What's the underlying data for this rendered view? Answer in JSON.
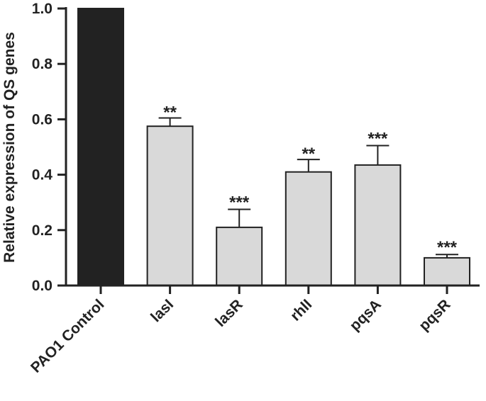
{
  "chart_data": {
    "type": "bar",
    "title": "",
    "xlabel": "",
    "ylabel": "Relative expression of QS genes",
    "ylim": [
      0,
      1.0
    ],
    "yticks": [
      "0.0",
      "0.2",
      "0.4",
      "0.6",
      "0.8",
      "1.0"
    ],
    "yticks_values": [
      0,
      0.2,
      0.4,
      0.6,
      0.8,
      1.0
    ],
    "categories": [
      "PAO1 Control",
      "lasI",
      "lasR",
      "rhlI",
      "pqsA",
      "pqsR"
    ],
    "values": [
      1.0,
      0.575,
      0.21,
      0.41,
      0.435,
      0.1
    ],
    "errors": [
      0,
      0.03,
      0.065,
      0.045,
      0.07,
      0.012
    ],
    "significance": [
      "",
      "**",
      "***",
      "**",
      "***",
      "***"
    ],
    "bar_colors": [
      "#222222",
      "#d9d9d9",
      "#d9d9d9",
      "#d9d9d9",
      "#d9d9d9",
      "#d9d9d9"
    ],
    "grid": false
  }
}
